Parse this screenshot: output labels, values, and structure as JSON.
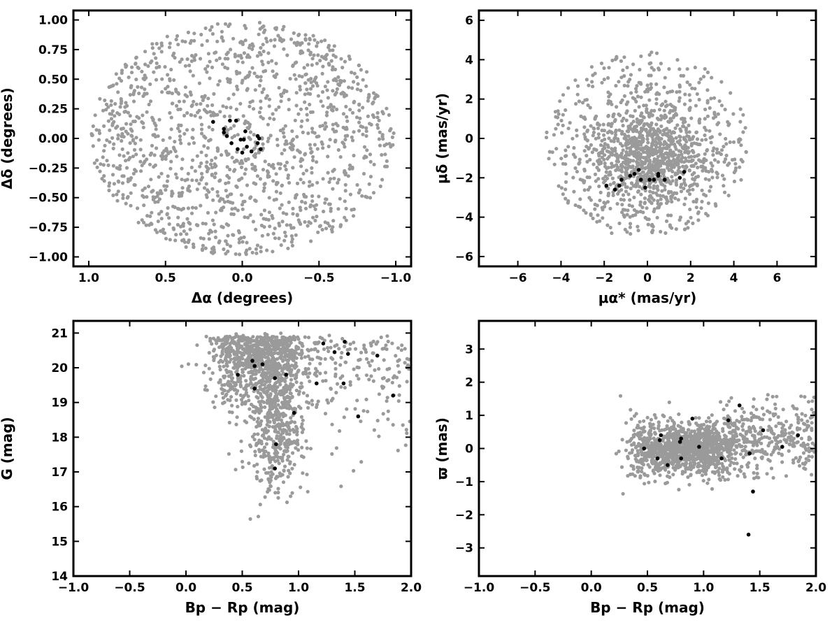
{
  "colors": {
    "background": "#9a9a9a",
    "members": "#000000"
  },
  "chart_data": [
    {
      "type": "scatter",
      "xlabel": "Δα (degrees)",
      "ylabel": "Δδ (degrees)",
      "xlim": [
        1.1,
        -1.1
      ],
      "ylim": [
        -1.08,
        1.08
      ],
      "xticks": [
        1.0,
        0.5,
        0.0,
        -0.5,
        -1.0
      ],
      "xtick_labels": [
        "1.0",
        "0.5",
        "0.0",
        "−0.5",
        "−1.0"
      ],
      "yticks": [
        -1.0,
        -0.75,
        -0.5,
        -0.25,
        0.0,
        0.25,
        0.5,
        0.75,
        1.0
      ],
      "ytick_labels": [
        "−1.00",
        "−0.75",
        "−0.50",
        "−0.25",
        "0.00",
        "0.25",
        "0.50",
        "0.75",
        "1.00"
      ],
      "background_field": {
        "shape": "circle",
        "center": [
          0,
          0
        ],
        "radius": 0.99,
        "n_points": 1400
      },
      "members": [
        [
          0.19,
          0.14
        ],
        [
          0.12,
          0.08
        ],
        [
          0.08,
          0.15
        ],
        [
          0.04,
          0.15
        ],
        [
          0.12,
          0.05
        ],
        [
          0.1,
          0.02
        ],
        [
          0.07,
          -0.04
        ],
        [
          0.03,
          -0.09
        ],
        [
          0.01,
          -0.01
        ],
        [
          -0.01,
          -0.01
        ],
        [
          -0.02,
          0.06
        ],
        [
          0.0,
          -0.12
        ],
        [
          -0.03,
          -0.07
        ],
        [
          -0.06,
          -0.11
        ],
        [
          -0.1,
          0.02
        ],
        [
          -0.1,
          -0.04
        ],
        [
          -0.11,
          0.0
        ],
        [
          -0.12,
          -0.09
        ]
      ]
    },
    {
      "type": "scatter",
      "xlabel": "μα* (mas/yr)",
      "ylabel": "μδ (mas/yr)",
      "xlim": [
        -7.8,
        7.8
      ],
      "ylim": [
        -6.5,
        6.5
      ],
      "xticks": [
        -6,
        -4,
        -2,
        0,
        2,
        4,
        6
      ],
      "xtick_labels": [
        "−6",
        "−4",
        "−2",
        "0",
        "2",
        "4",
        "6"
      ],
      "yticks": [
        -6,
        -4,
        -2,
        0,
        2,
        4,
        6
      ],
      "ytick_labels": [
        "−6",
        "−4",
        "−2",
        "0",
        "2",
        "4",
        "6"
      ],
      "background_field": {
        "shape": "disk",
        "center": [
          0,
          -1
        ],
        "radius": 4.9,
        "n_points": 1400
      },
      "members": [
        [
          -1.9,
          -2.4
        ],
        [
          -1.5,
          -2.6
        ],
        [
          -1.3,
          -2.4
        ],
        [
          -1.2,
          -2.1
        ],
        [
          -0.8,
          -1.9
        ],
        [
          -0.6,
          -1.8
        ],
        [
          -0.4,
          -1.6
        ],
        [
          -0.3,
          -2.1
        ],
        [
          -0.1,
          -2.5
        ],
        [
          0.1,
          -2.1
        ],
        [
          0.3,
          -2.1
        ],
        [
          0.5,
          -1.9
        ],
        [
          0.5,
          -1.8
        ],
        [
          0.8,
          -2.1
        ],
        [
          1.5,
          -2.0
        ],
        [
          1.7,
          -1.7
        ]
      ]
    },
    {
      "type": "scatter",
      "xlabel": "Bp − Rp (mag)",
      "ylabel": "G (mag)",
      "xlim": [
        -1.0,
        2.0
      ],
      "ylim": [
        14,
        21.35
      ],
      "xticks": [
        -1.0,
        -0.5,
        0.0,
        0.5,
        1.0,
        1.5,
        2.0
      ],
      "xtick_labels": [
        "−1.0",
        "−0.5",
        "0.0",
        "0.5",
        "1.0",
        "1.5",
        "2.0"
      ],
      "yticks": [
        14,
        15,
        16,
        17,
        18,
        19,
        20,
        21
      ],
      "ytick_labels": [
        "14",
        "15",
        "16",
        "17",
        "18",
        "19",
        "20",
        "21"
      ],
      "background_field": {
        "shape": "cmd",
        "n_points": 1500
      },
      "members": [
        [
          0.46,
          19.8
        ],
        [
          0.59,
          20.2
        ],
        [
          0.61,
          19.4
        ],
        [
          0.61,
          20.05
        ],
        [
          0.68,
          20.1
        ],
        [
          0.79,
          19.7
        ],
        [
          0.79,
          17.1
        ],
        [
          0.8,
          17.8
        ],
        [
          0.89,
          19.8
        ],
        [
          0.96,
          18.7
        ],
        [
          1.16,
          19.55
        ],
        [
          1.22,
          20.7
        ],
        [
          1.32,
          20.45
        ],
        [
          1.4,
          19.55
        ],
        [
          1.41,
          20.75
        ],
        [
          1.44,
          20.4
        ],
        [
          1.53,
          18.6
        ],
        [
          1.7,
          20.35
        ],
        [
          1.84,
          19.2
        ]
      ]
    },
    {
      "type": "scatter",
      "xlabel": "Bp − Rp (mag)",
      "ylabel": "ϖ (mas)",
      "xlim": [
        -1.0,
        2.0
      ],
      "ylim": [
        -3.85,
        3.85
      ],
      "xticks": [
        -1.0,
        -0.5,
        0.0,
        0.5,
        1.0,
        1.5,
        2.0
      ],
      "xtick_labels": [
        "−1.0",
        "−0.5",
        "0.0",
        "0.5",
        "1.0",
        "1.5",
        "2.0"
      ],
      "yticks": [
        -3,
        -2,
        -1,
        0,
        1,
        2,
        3
      ],
      "ytick_labels": [
        "−3",
        "−2",
        "−1",
        "0",
        "1",
        "2",
        "3"
      ],
      "background_field": {
        "shape": "cmd-parallax",
        "n_points": 1500
      },
      "members": [
        [
          0.47,
          0.0
        ],
        [
          0.59,
          -0.3
        ],
        [
          0.61,
          0.25
        ],
        [
          0.62,
          0.4
        ],
        [
          0.68,
          -0.5
        ],
        [
          0.79,
          0.2
        ],
        [
          0.8,
          0.3
        ],
        [
          0.8,
          -0.3
        ],
        [
          0.9,
          0.9
        ],
        [
          0.96,
          0.05
        ],
        [
          1.16,
          -0.3
        ],
        [
          1.22,
          0.85
        ],
        [
          1.32,
          1.3
        ],
        [
          1.4,
          -2.6
        ],
        [
          1.41,
          -0.15
        ],
        [
          1.44,
          -1.3
        ],
        [
          1.53,
          0.55
        ],
        [
          1.7,
          0.05
        ],
        [
          1.84,
          0.4
        ]
      ]
    }
  ]
}
